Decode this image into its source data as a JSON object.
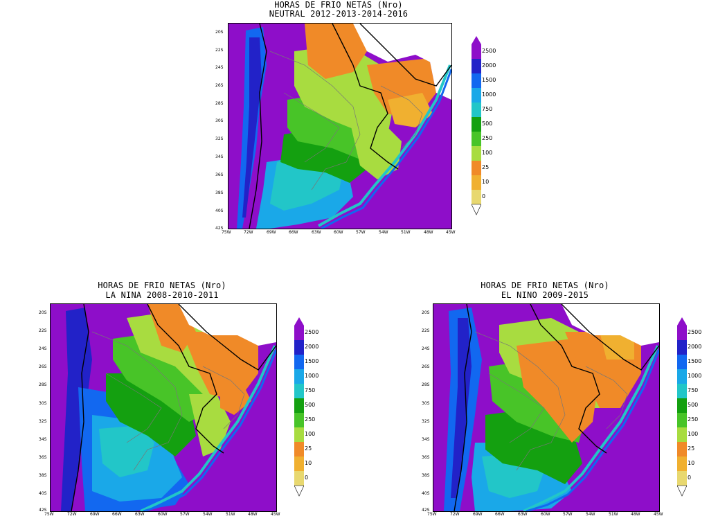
{
  "palette": {
    "0": "#e8d870",
    "10": "#f0b030",
    "25": "#f08a28",
    "100": "#a8dc40",
    "250": "#48c428",
    "500": "#14a010",
    "750": "#22c6c8",
    "1000": "#1aa8e8",
    "1500": "#1268f0",
    "2000": "#2222c8",
    "2500": "#8e0ec9"
  },
  "colorbar": {
    "labels": [
      "2500",
      "2000",
      "1500",
      "1000",
      "750",
      "500",
      "250",
      "100",
      "25",
      "10",
      "0"
    ],
    "colors": [
      "#8e0ec9",
      "#2222c8",
      "#1268f0",
      "#1aa8e8",
      "#22c6c8",
      "#14a010",
      "#48c428",
      "#a8dc40",
      "#f08a28",
      "#f0b030",
      "#e8d870"
    ]
  },
  "axes": {
    "lat_labels": [
      "20S",
      "22S",
      "24S",
      "26S",
      "28S",
      "30S",
      "32S",
      "34S",
      "36S",
      "38S",
      "40S",
      "42S"
    ],
    "lon_labels": [
      "75W",
      "72W",
      "69W",
      "66W",
      "63W",
      "60W",
      "57W",
      "54W",
      "51W",
      "48W",
      "45W"
    ]
  },
  "panels": [
    {
      "id": "neutral",
      "title_line1": "HORAS DE FRIO NETAS (Nro)",
      "title_line2": "NEUTRAL 2012-2013-2014-2016"
    },
    {
      "id": "nina",
      "title_line1": "HORAS DE FRIO NETAS (Nro)",
      "title_line2": "LA NINA 2008-2010-2011"
    },
    {
      "id": "nino",
      "title_line1": "HORAS DE FRIO NETAS (Nro)",
      "title_line2": "EL NINO 2009-2015"
    }
  ]
}
